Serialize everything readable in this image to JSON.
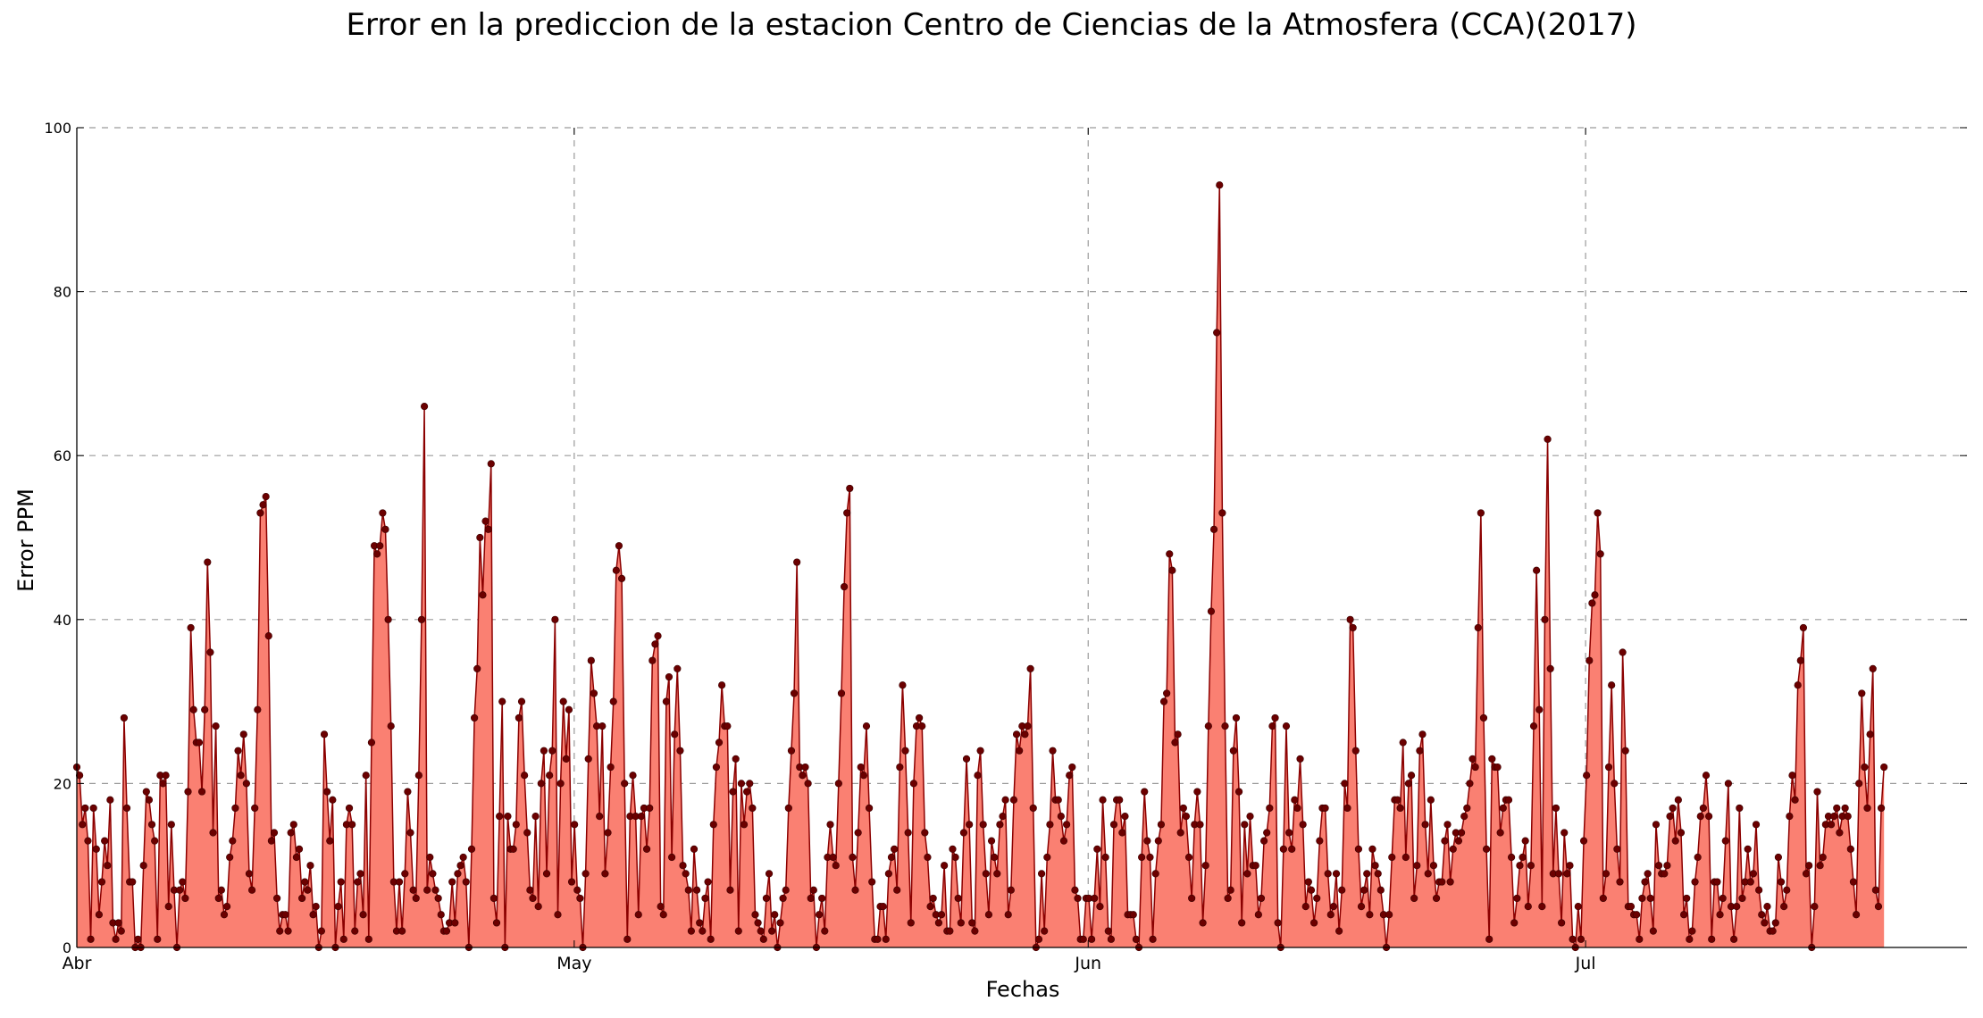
{
  "chart_data": {
    "type": "area",
    "title": "Error en la prediccion de la estacion Centro de Ciencias de la Atmosfera (CCA)(2017)",
    "xlabel": "Fechas",
    "ylabel": "Error PPM",
    "ylim": [
      0,
      100
    ],
    "yticks": [
      0,
      20,
      40,
      60,
      80,
      100
    ],
    "xlim": [
      "2017-04-01",
      "2017-07-24"
    ],
    "xticks": [
      {
        "date": "2017-04-01",
        "label": "Abr"
      },
      {
        "date": "2017-05-01",
        "label": "May"
      },
      {
        "date": "2017-06-01",
        "label": "Jun"
      },
      {
        "date": "2017-07-01",
        "label": "Jul"
      }
    ],
    "grid": true,
    "legend": "none",
    "series": [
      {
        "x_start": "2017-04-01",
        "x_end": "2017-07-19",
        "values": [
          22,
          21,
          15,
          17,
          13,
          1,
          17,
          12,
          4,
          8,
          13,
          10,
          18,
          3,
          1,
          3,
          2,
          28,
          17,
          8,
          8,
          0,
          1,
          0,
          10,
          19,
          18,
          15,
          13,
          1,
          21,
          20,
          21,
          5,
          15,
          7,
          0,
          7,
          8,
          6,
          19,
          39,
          29,
          25,
          25,
          19,
          29,
          47,
          36,
          14,
          27,
          6,
          7,
          4,
          5,
          11,
          13,
          17,
          24,
          21,
          26,
          20,
          9,
          7,
          17,
          29,
          53,
          54,
          55,
          38,
          13,
          14,
          6,
          2,
          4,
          4,
          2,
          14,
          15,
          11,
          12,
          6,
          8,
          7,
          10,
          4,
          5,
          0,
          2,
          26,
          19,
          13,
          18,
          0,
          5,
          8,
          1,
          15,
          17,
          15,
          2,
          8,
          9,
          4,
          21,
          1,
          25,
          49,
          48,
          49,
          53,
          51,
          40,
          27,
          8,
          2,
          8,
          2,
          9,
          19,
          14,
          7,
          6,
          21,
          40,
          66,
          7,
          11,
          9,
          7,
          6,
          4,
          2,
          2,
          3,
          8,
          3,
          9,
          10,
          11,
          8,
          0,
          12,
          28,
          34,
          50,
          43,
          52,
          51,
          59,
          6,
          3,
          16,
          30,
          0,
          16,
          12,
          12,
          15,
          28,
          30,
          21,
          14,
          7,
          6,
          16,
          5,
          20,
          24,
          9,
          21,
          24,
          40,
          4,
          20,
          30,
          23,
          29,
          8,
          15,
          7,
          6,
          0,
          9,
          23,
          35,
          31,
          27,
          16,
          27,
          9,
          14,
          22,
          30,
          46,
          49,
          45,
          20,
          1,
          16,
          21,
          16,
          4,
          16,
          17,
          12,
          17,
          35,
          37,
          38,
          5,
          4,
          30,
          33,
          11,
          26,
          34,
          24,
          10,
          9,
          7,
          2,
          12,
          7,
          3,
          2,
          6,
          8,
          1,
          15,
          22,
          25,
          32,
          27,
          27,
          7,
          19,
          23,
          2,
          20,
          15,
          19,
          20,
          17,
          4,
          3,
          2,
          1,
          6,
          9,
          2,
          4,
          0,
          3,
          6,
          7,
          17,
          24,
          31,
          47,
          22,
          21,
          22,
          20,
          6,
          7,
          0,
          4,
          6,
          2,
          11,
          15,
          11,
          10,
          20,
          31,
          44,
          53,
          56,
          11,
          7,
          14,
          22,
          21,
          27,
          17,
          8,
          1,
          1,
          5,
          5,
          1,
          9,
          11,
          12,
          7,
          22,
          32,
          24,
          14,
          3,
          20,
          27,
          28,
          27,
          14,
          11,
          5,
          6,
          4,
          3,
          4,
          10,
          2,
          2,
          12,
          11,
          6,
          3,
          14,
          23,
          15,
          3,
          2,
          21,
          24,
          15,
          9,
          4,
          13,
          11,
          9,
          15,
          16,
          18,
          4,
          7,
          18,
          26,
          24,
          27,
          26,
          27,
          34,
          17,
          0,
          1,
          9,
          2,
          11,
          15,
          24,
          18,
          18,
          16,
          13,
          15,
          21,
          22,
          7,
          6,
          1,
          1,
          6,
          6,
          1,
          6,
          12,
          5,
          18,
          11,
          2,
          1,
          15,
          18,
          18,
          14,
          16,
          4,
          4,
          4,
          1,
          0,
          11,
          19,
          13,
          11,
          1,
          9,
          13,
          15,
          30,
          31,
          48,
          46,
          25,
          26,
          14,
          17,
          16,
          11,
          6,
          15,
          19,
          15,
          3,
          10,
          27,
          41,
          51,
          75,
          93,
          53,
          27,
          6,
          7,
          24,
          28,
          19,
          3,
          15,
          9,
          16,
          10,
          10,
          4,
          6,
          13,
          14,
          17,
          27,
          28,
          3,
          0,
          12,
          27,
          14,
          12,
          18,
          17,
          23,
          15,
          5,
          8,
          7,
          3,
          6,
          13,
          17,
          17,
          9,
          4,
          5,
          9,
          2,
          7,
          20,
          17,
          40,
          39,
          24,
          12,
          5,
          7,
          9,
          4,
          12,
          10,
          9,
          7,
          4,
          0,
          4,
          11,
          18,
          18,
          17,
          25,
          11,
          20,
          21,
          6,
          10,
          24,
          26,
          15,
          9,
          18,
          10,
          6,
          8,
          8,
          13,
          15,
          8,
          12,
          14,
          13,
          14,
          16,
          17,
          20,
          23,
          22,
          39,
          53,
          28,
          12,
          1,
          23,
          22,
          22,
          14,
          17,
          18,
          18,
          11,
          3,
          6,
          10,
          11,
          13,
          5,
          10,
          27,
          46,
          29,
          5,
          40,
          62,
          34,
          9,
          17,
          9,
          3,
          14,
          9,
          10,
          1,
          0,
          5,
          1,
          13,
          21,
          35,
          42,
          43,
          53,
          48,
          6,
          9,
          22,
          32,
          20,
          12,
          8,
          36,
          24,
          5,
          5,
          4,
          4,
          1,
          6,
          8,
          9,
          6,
          2,
          15,
          10,
          9,
          9,
          10,
          16,
          17,
          13,
          18,
          14,
          4,
          6,
          1,
          2,
          8,
          11,
          16,
          17,
          21,
          16,
          1,
          8,
          8,
          4,
          6,
          13,
          20,
          5,
          1,
          5,
          17,
          6,
          8,
          12,
          8,
          9,
          15,
          7,
          4,
          3,
          5,
          2,
          2,
          3,
          11,
          8,
          5,
          7,
          16,
          21,
          18,
          32,
          35,
          39,
          9,
          10,
          0,
          5,
          19,
          10,
          11,
          15,
          16,
          15,
          16,
          17,
          14,
          16,
          17,
          16,
          12,
          8,
          4,
          20,
          31,
          22,
          17,
          26,
          34,
          7,
          5,
          17,
          22
        ]
      }
    ]
  }
}
